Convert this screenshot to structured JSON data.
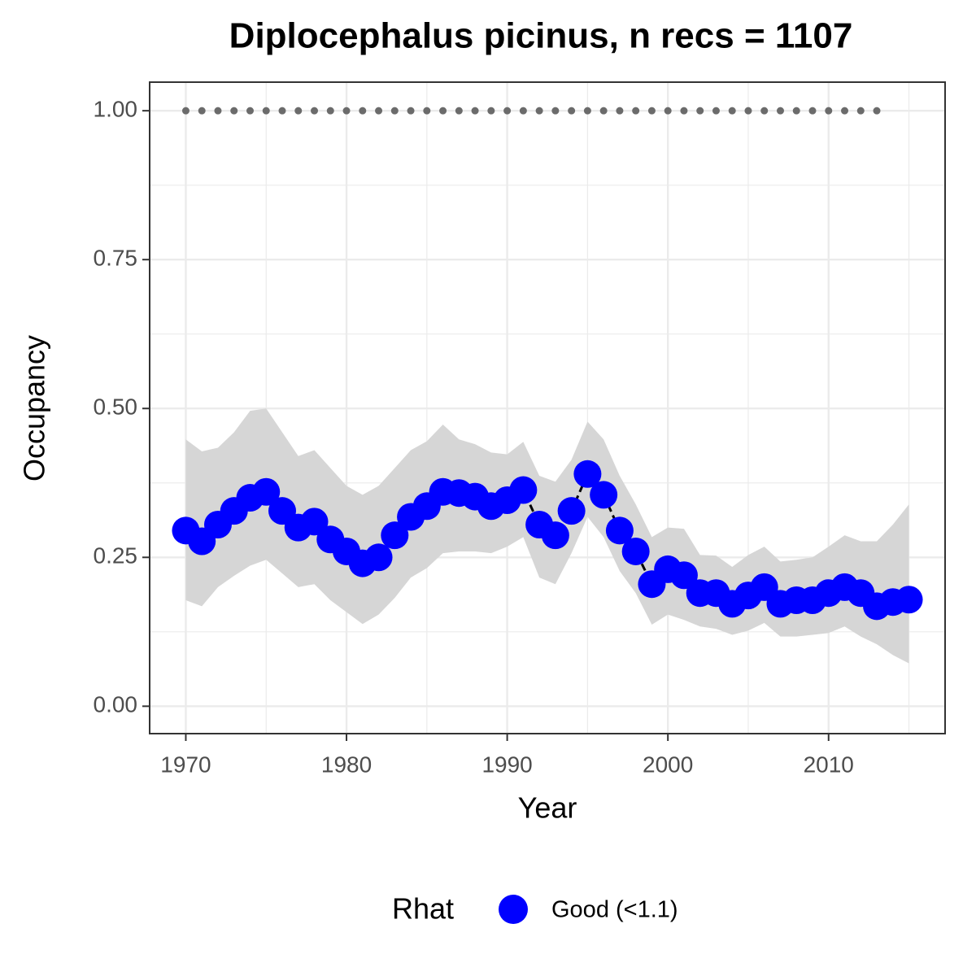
{
  "chart_data": {
    "type": "line",
    "title": "Diplocephalus picinus, n recs = 1107",
    "x_label": "Year",
    "y_label": "Occupancy",
    "x": [
      1970,
      1971,
      1972,
      1973,
      1974,
      1975,
      1976,
      1977,
      1978,
      1979,
      1980,
      1981,
      1982,
      1983,
      1984,
      1985,
      1986,
      1987,
      1988,
      1989,
      1990,
      1991,
      1992,
      1993,
      1994,
      1995,
      1996,
      1997,
      1998,
      1999,
      2000,
      2001,
      2002,
      2003,
      2004,
      2005,
      2006,
      2007,
      2008,
      2009,
      2010,
      2011,
      2012,
      2013,
      2014,
      2015
    ],
    "series": [
      {
        "name": "Good (<1.1)",
        "color": "#0000ff",
        "values": [
          0.295,
          0.277,
          0.305,
          0.328,
          0.35,
          0.36,
          0.328,
          0.3,
          0.31,
          0.28,
          0.26,
          0.24,
          0.25,
          0.287,
          0.318,
          0.336,
          0.36,
          0.358,
          0.352,
          0.336,
          0.346,
          0.363,
          0.305,
          0.287,
          0.328,
          0.39,
          0.355,
          0.295,
          0.26,
          0.205,
          0.23,
          0.22,
          0.19,
          0.19,
          0.172,
          0.186,
          0.2,
          0.172,
          0.178,
          0.178,
          0.19,
          0.2,
          0.19,
          0.168,
          0.175,
          0.179
        ]
      }
    ],
    "band": {
      "color": "#d6d6d6",
      "upper": [
        0.448,
        0.428,
        0.434,
        0.46,
        0.496,
        0.5,
        0.46,
        0.42,
        0.43,
        0.4,
        0.37,
        0.355,
        0.37,
        0.4,
        0.43,
        0.445,
        0.473,
        0.448,
        0.44,
        0.426,
        0.423,
        0.444,
        0.387,
        0.377,
        0.414,
        0.478,
        0.448,
        0.387,
        0.339,
        0.284,
        0.3,
        0.298,
        0.254,
        0.253,
        0.234,
        0.254,
        0.268,
        0.243,
        0.246,
        0.25,
        0.268,
        0.287,
        0.277,
        0.277,
        0.305,
        0.339
      ],
      "lower": [
        0.178,
        0.168,
        0.2,
        0.219,
        0.236,
        0.246,
        0.223,
        0.2,
        0.205,
        0.178,
        0.158,
        0.138,
        0.154,
        0.182,
        0.216,
        0.232,
        0.257,
        0.26,
        0.26,
        0.257,
        0.268,
        0.284,
        0.216,
        0.205,
        0.257,
        0.318,
        0.284,
        0.227,
        0.19,
        0.137,
        0.154,
        0.145,
        0.134,
        0.13,
        0.12,
        0.127,
        0.14,
        0.117,
        0.117,
        0.12,
        0.123,
        0.134,
        0.117,
        0.104,
        0.086,
        0.072
      ]
    },
    "reference": {
      "color": "#6b6b6b",
      "x": [
        1970,
        1971,
        1972,
        1973,
        1974,
        1975,
        1976,
        1977,
        1978,
        1979,
        1980,
        1981,
        1982,
        1983,
        1984,
        1985,
        1986,
        1987,
        1988,
        1989,
        1990,
        1991,
        1992,
        1993,
        1994,
        1995,
        1996,
        1997,
        1998,
        1999,
        2000,
        2001,
        2002,
        2003,
        2004,
        2005,
        2006,
        2007,
        2008,
        2009,
        2010,
        2011,
        2012,
        2013
      ],
      "values": [
        1,
        1,
        1,
        1,
        1,
        1,
        1,
        1,
        1,
        1,
        1,
        1,
        1,
        1,
        1,
        1,
        1,
        1,
        1,
        1,
        1,
        1,
        1,
        1,
        1,
        1,
        1,
        1,
        1,
        1,
        1,
        1,
        1,
        1,
        1,
        1,
        1,
        1,
        1,
        1,
        1,
        1,
        1,
        1
      ]
    },
    "legend_title": "Rhat",
    "legend_position": "bottom",
    "xlim": [
      1967.75,
      2017.25
    ],
    "ylim": [
      -0.046,
      1.048
    ],
    "xticks": [
      1970,
      1980,
      1990,
      2000,
      2010
    ],
    "yticks": [
      {
        "value": 0,
        "label": "0.00"
      },
      {
        "value": 0.25,
        "label": "0.25"
      },
      {
        "value": 0.5,
        "label": "0.50"
      },
      {
        "value": 0.75,
        "label": "0.75"
      },
      {
        "value": 1,
        "label": "1.00"
      }
    ],
    "grid": true
  }
}
